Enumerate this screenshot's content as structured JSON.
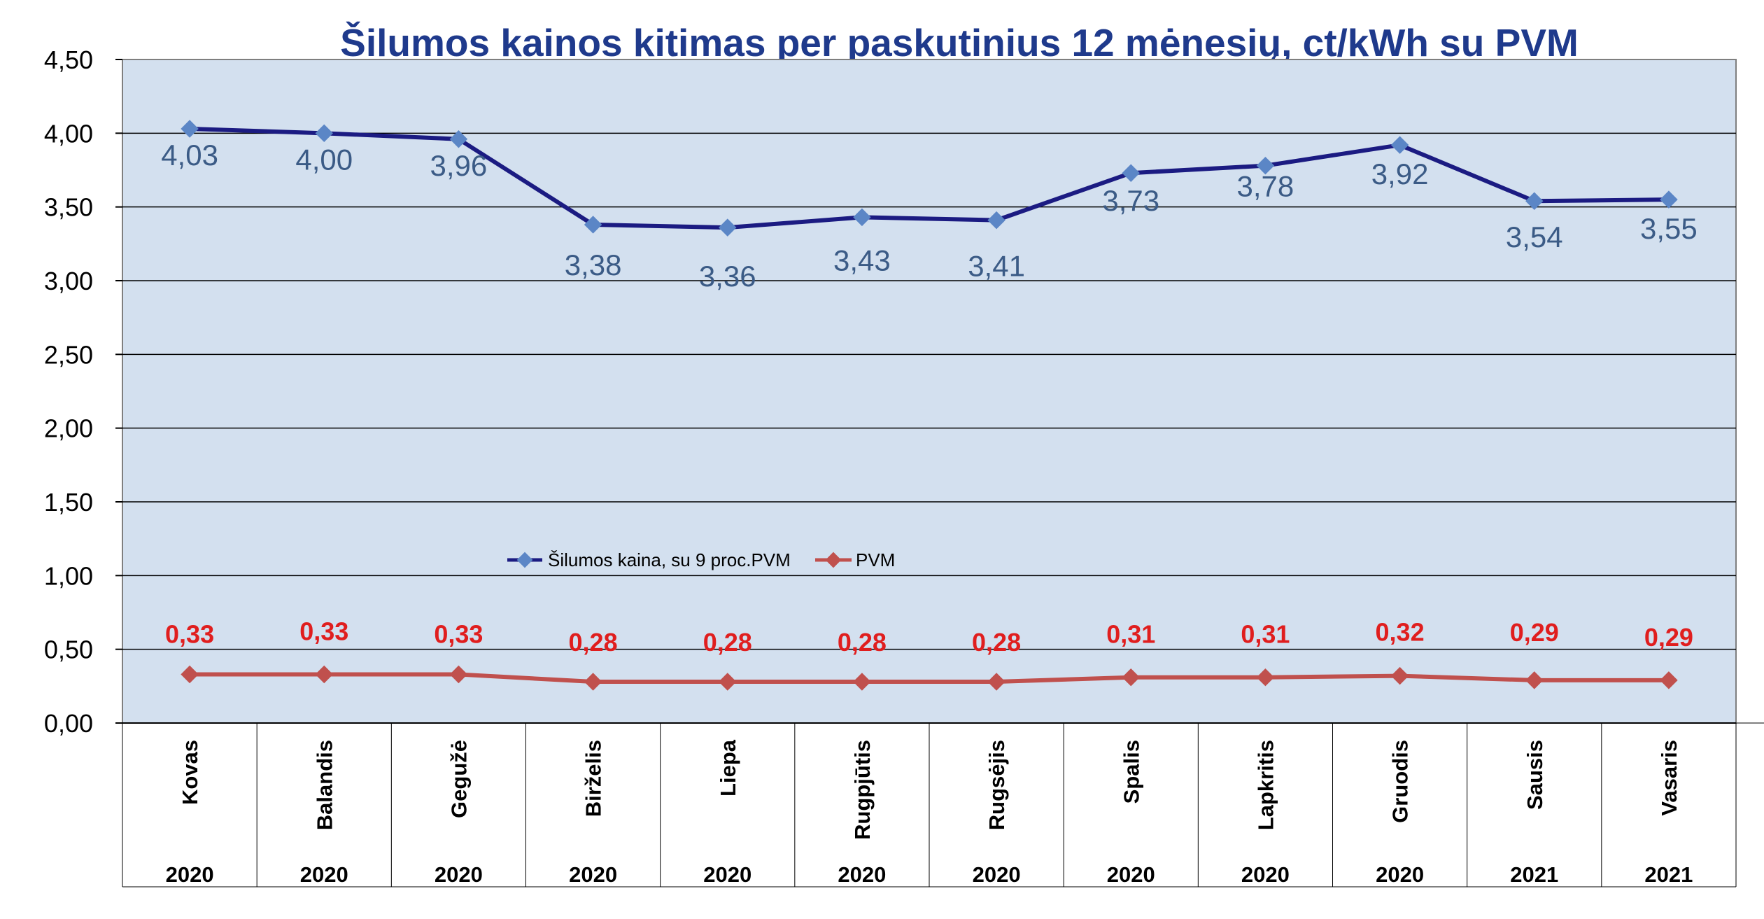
{
  "chart_data": {
    "type": "line",
    "title": "Šilumos kainos kitimas per paskutinius 12 mėnesių, ct/kWh su PVM",
    "categories": [
      "Kovas",
      "Balandis",
      "Gegužė",
      "Birželis",
      "Liepa",
      "Rugpjūtis",
      "Rugsėjis",
      "Spalis",
      "Lapkritis",
      "Gruodis",
      "Sausis",
      "Vasaris"
    ],
    "years": [
      "2020",
      "2020",
      "2020",
      "2020",
      "2020",
      "2020",
      "2020",
      "2020",
      "2020",
      "2020",
      "2021",
      "2021"
    ],
    "series": [
      {
        "name": "Šilumos kaina, su 9 proc.PVM",
        "color": "#1b1b82",
        "marker_color": "#5b86c6",
        "label_color": "#3b5b86",
        "values": [
          4.03,
          4.0,
          3.96,
          3.38,
          3.36,
          3.43,
          3.41,
          3.73,
          3.78,
          3.92,
          3.54,
          3.55
        ],
        "labels": [
          "4,03",
          "4,00",
          "3,96",
          "3,38",
          "3,36",
          "3,43",
          "3,41",
          "3,73",
          "3,78",
          "3,92",
          "3,54",
          "3,55"
        ]
      },
      {
        "name": "PVM",
        "color": "#c0504d",
        "marker_color": "#c0504d",
        "label_color": "#e01e1e",
        "values": [
          0.33,
          0.33,
          0.33,
          0.28,
          0.28,
          0.28,
          0.28,
          0.31,
          0.31,
          0.32,
          0.29,
          0.29
        ],
        "labels": [
          "0,33",
          "0,33",
          "0,33",
          "0,28",
          "0,28",
          "0,28",
          "0,28",
          "0,31",
          "0,31",
          "0,32",
          "0,29",
          "0,29"
        ]
      }
    ],
    "ylim": [
      0,
      4.5
    ],
    "yticks": [
      "0,00",
      "0,50",
      "1,00",
      "1,50",
      "2,00",
      "2,50",
      "3,00",
      "3,50",
      "4,00",
      "4,50"
    ],
    "grid": true,
    "legend_position": "center",
    "plot_background": "#d3e0ef"
  }
}
